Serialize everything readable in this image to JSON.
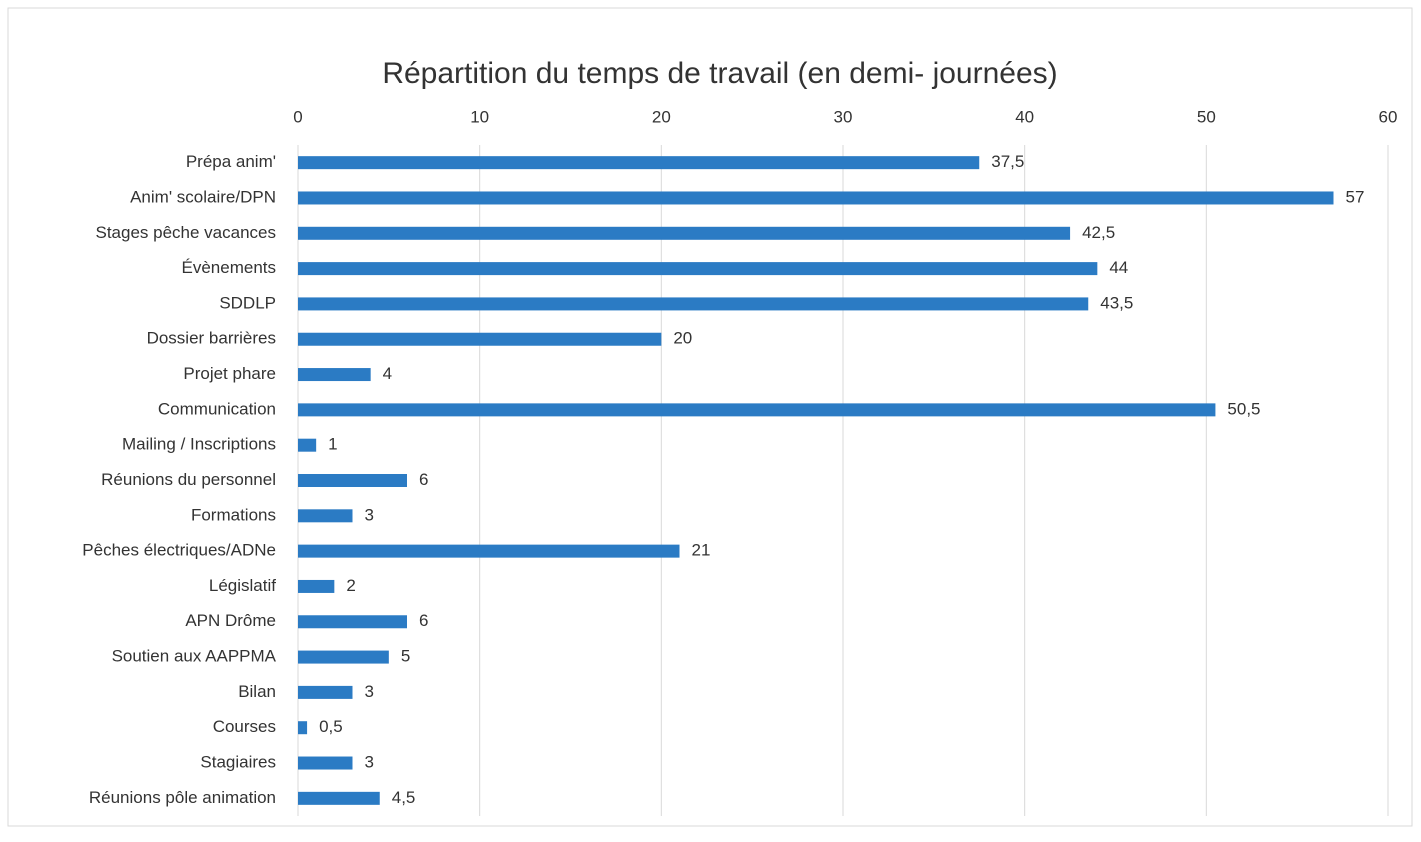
{
  "chart_data": {
    "type": "bar",
    "orientation": "horizontal",
    "title": "Répartition du temps de travail (en demi- journées)",
    "categories": [
      "Prépa anim'",
      "Anim' scolaire/DPN",
      "Stages pêche vacances",
      "Évènements",
      "SDDLP",
      "Dossier barrières",
      "Projet phare",
      "Communication",
      "Mailing / Inscriptions",
      "Réunions du personnel",
      "Formations",
      "Pêches électriques/ADNe",
      "Législatif",
      "APN Drôme",
      "Soutien aux AAPPMA",
      "Bilan",
      "Courses",
      "Stagiaires",
      "Réunions pôle animation"
    ],
    "values": [
      37.5,
      57,
      42.5,
      44,
      43.5,
      20,
      4,
      50.5,
      1,
      6,
      3,
      21,
      2,
      6,
      5,
      3,
      0.5,
      3,
      4.5
    ],
    "value_labels": [
      "37,5",
      "57",
      "42,5",
      "44",
      "43,5",
      "20",
      "4",
      "50,5",
      "1",
      "6",
      "3",
      "21",
      "2",
      "6",
      "5",
      "3",
      "0,5",
      "3",
      "4,5"
    ],
    "color": "#2b7bc4",
    "xlim": [
      0,
      60
    ],
    "xticks": [
      0,
      10,
      20,
      30,
      40,
      50,
      60
    ],
    "grid": true
  }
}
